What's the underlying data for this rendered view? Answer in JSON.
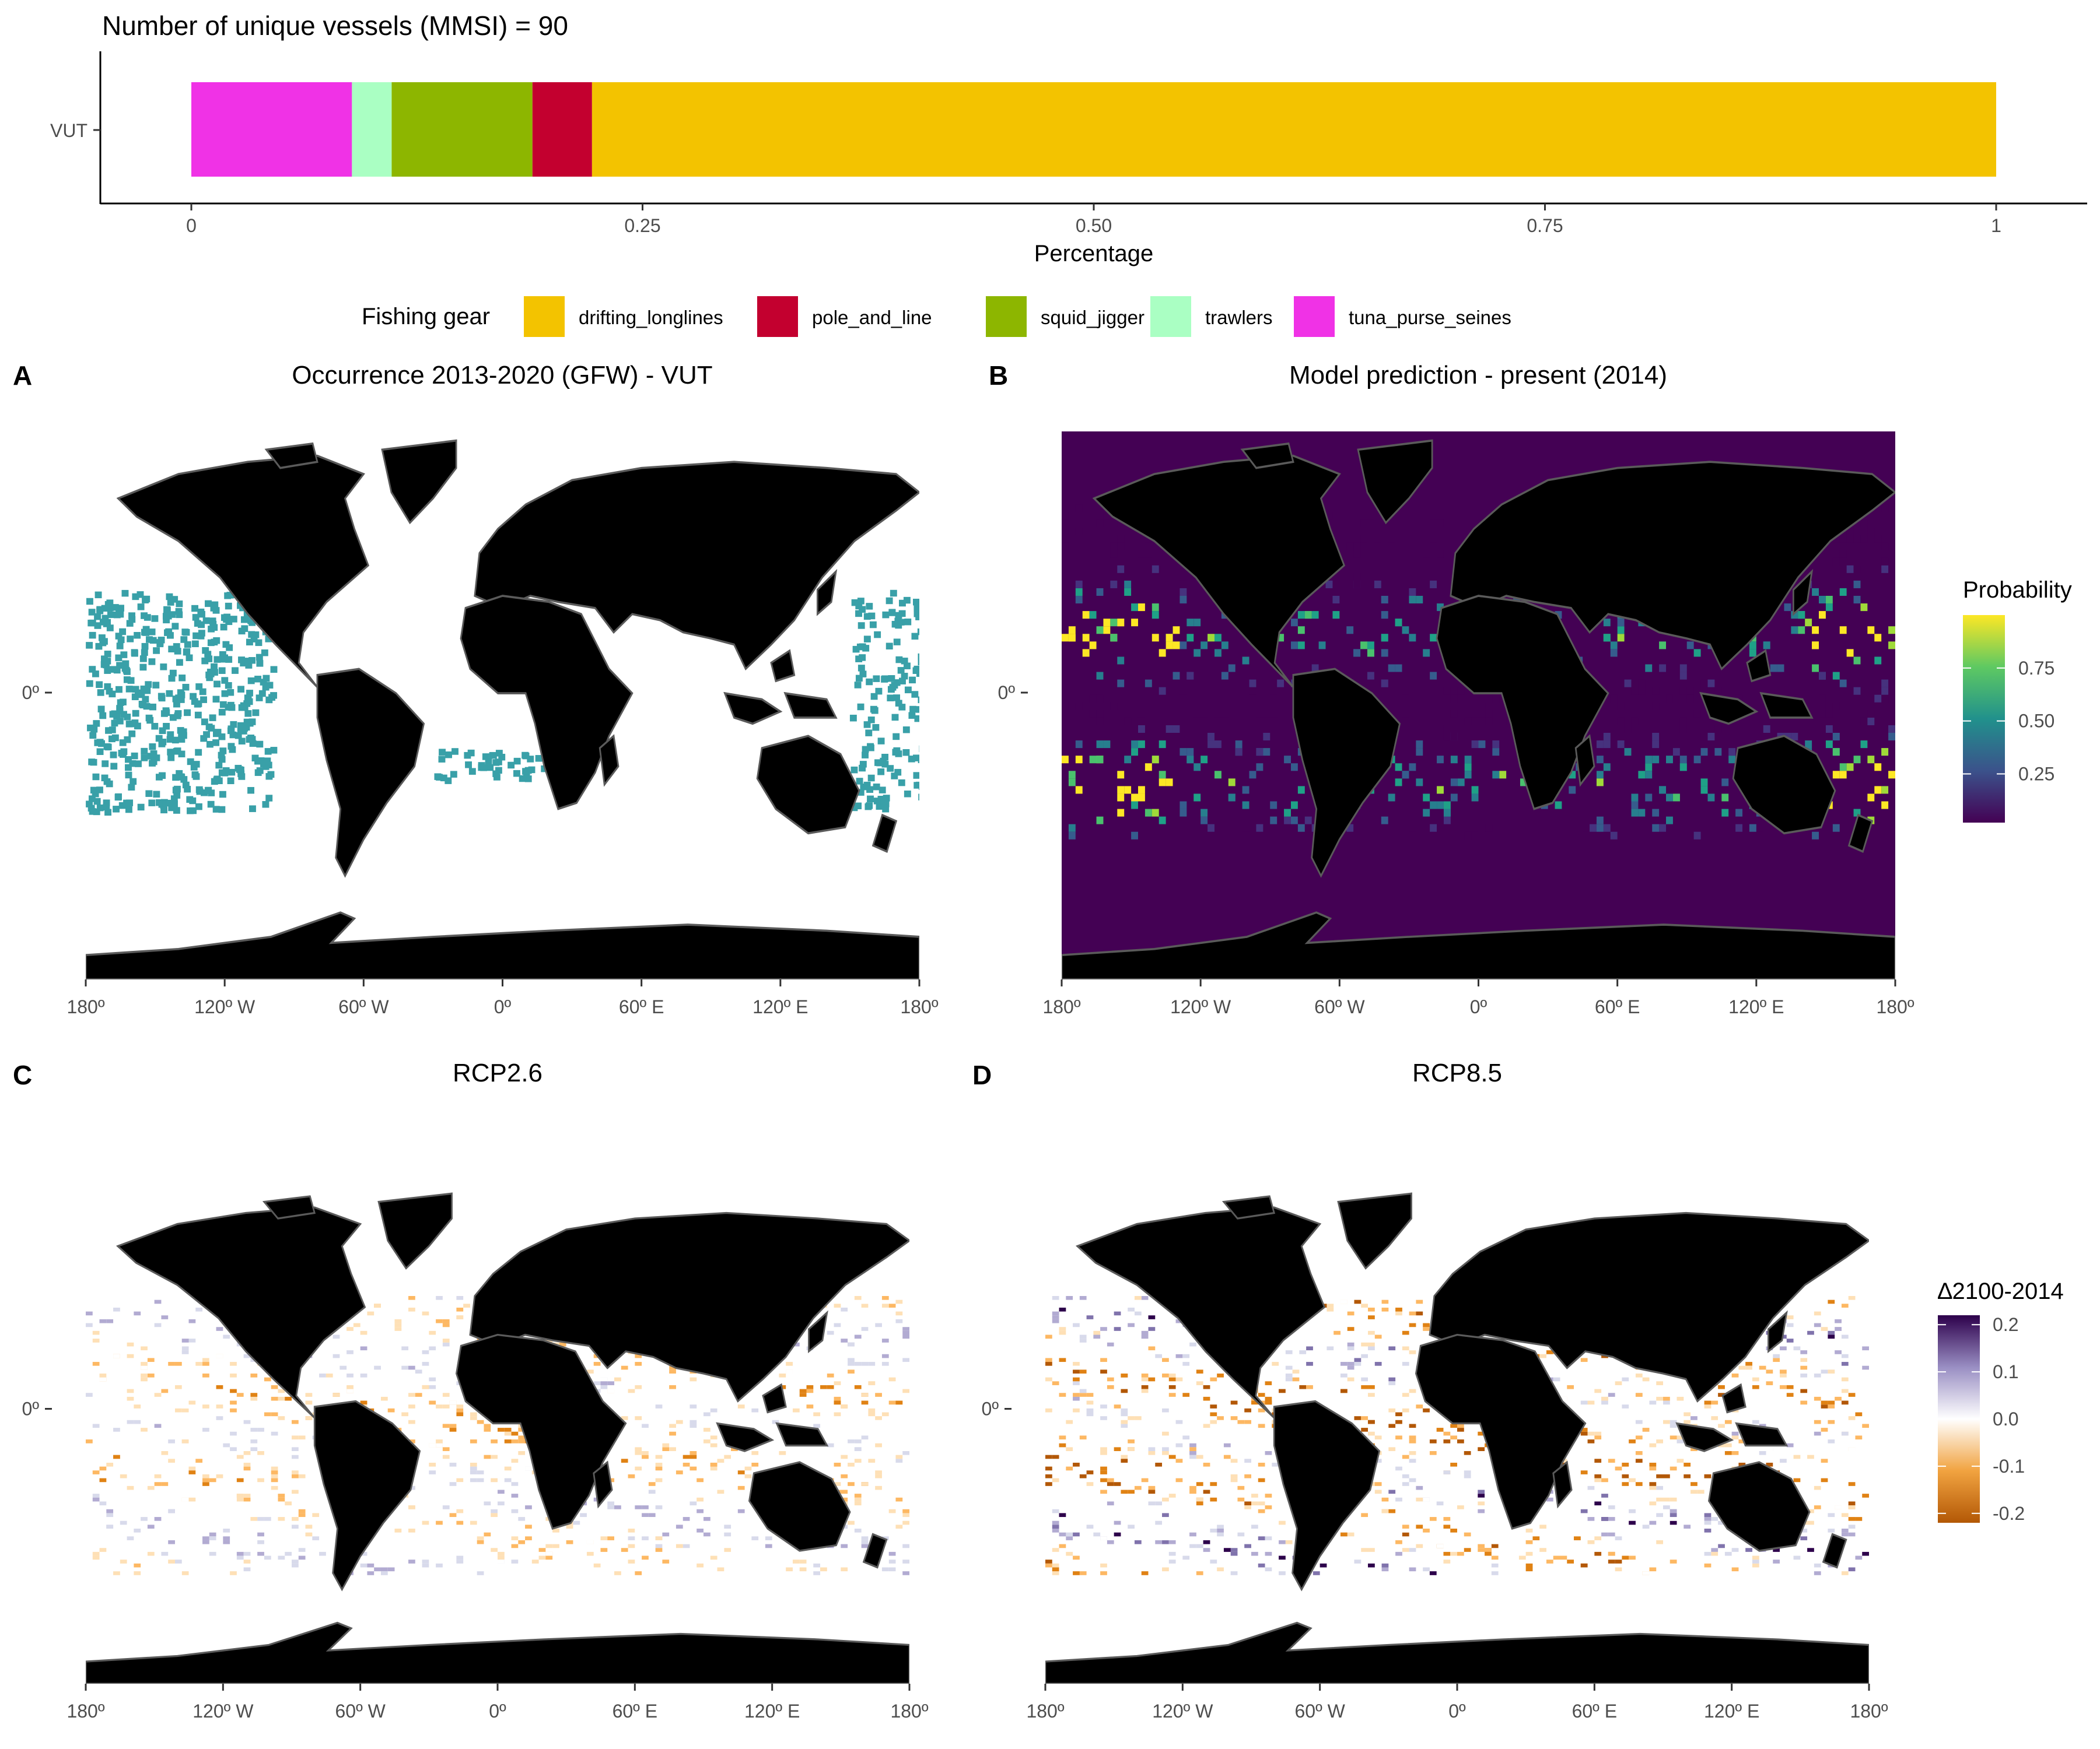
{
  "figure": {
    "bar_panel": {
      "title": "Number of unique vessels (MMSI) = 90",
      "xlabel": "Percentage",
      "y_category": "VUT",
      "x_ticks": [
        "0",
        "0.25",
        "0.50",
        "0.75",
        "1"
      ],
      "legend_title": "Fishing gear"
    },
    "panels": [
      {
        "letter": "A",
        "title": "Occurrence 2013-2020 (GFW) - VUT"
      },
      {
        "letter": "B",
        "title": "Model prediction - present (2014)"
      },
      {
        "letter": "C",
        "title": "RCP2.6"
      },
      {
        "letter": "D",
        "title": "RCP8.5"
      }
    ],
    "map_x_ticks": [
      "180º",
      "120º W",
      "60º W",
      "0º",
      "60º E",
      "120º E",
      "180º"
    ],
    "map_y_tick": "0º",
    "probability_legend": {
      "title": "Probability",
      "ticks": [
        "0.75",
        "0.50",
        "0.25"
      ]
    },
    "delta_legend": {
      "title": "∆2100-2014",
      "ticks": [
        "0.2",
        "0.1",
        "0.0",
        "-0.1",
        "-0.2"
      ]
    }
  },
  "chart_data": [
    {
      "type": "bar",
      "orientation": "horizontal-stacked",
      "title": "Number of unique vessels (MMSI) = 90",
      "xlabel": "Percentage",
      "ylabel": "",
      "categories": [
        "VUT"
      ],
      "xlim": [
        0,
        1
      ],
      "legend_position": "bottom",
      "series": [
        {
          "name": "tuna_purse_seines",
          "values": [
            0.089
          ],
          "color": "#F032E6"
        },
        {
          "name": "trawlers",
          "values": [
            0.022
          ],
          "color": "#AAFFC3"
        },
        {
          "name": "squid_jigger",
          "values": [
            0.078
          ],
          "color": "#8DB600"
        },
        {
          "name": "pole_and_line",
          "values": [
            0.033
          ],
          "color": "#C3002F"
        },
        {
          "name": "drifting_longlines",
          "values": [
            0.778
          ],
          "color": "#F3C300"
        }
      ],
      "legend_order": [
        "drifting_longlines",
        "pole_and_line",
        "squid_jigger",
        "trawlers",
        "tuna_purse_seines"
      ]
    },
    {
      "type": "heatmap",
      "panel": "A",
      "title": "Occurrence 2013-2020 (GFW) - VUT",
      "fill_color": "#39A0A8",
      "x_ticks": [
        "180º",
        "120º W",
        "60º W",
        "0º",
        "60º E",
        "120º E",
        "180º"
      ]
    },
    {
      "type": "heatmap",
      "panel": "B",
      "title": "Model prediction - present (2014)",
      "colorscale": "viridis",
      "legend_title": "Probability",
      "legend_ticks": [
        0.25,
        0.5,
        0.75
      ]
    },
    {
      "type": "heatmap",
      "panel": "C",
      "title": "RCP2.6",
      "colorscale": "diverging orange-white-purple",
      "legend_title": "∆2100-2014",
      "legend_ticks": [
        -0.2,
        -0.1,
        0.0,
        0.1,
        0.2
      ]
    },
    {
      "type": "heatmap",
      "panel": "D",
      "title": "RCP8.5",
      "colorscale": "diverging orange-white-purple",
      "legend_title": "∆2100-2014",
      "legend_ticks": [
        -0.2,
        -0.1,
        0.0,
        0.1,
        0.2
      ]
    }
  ]
}
